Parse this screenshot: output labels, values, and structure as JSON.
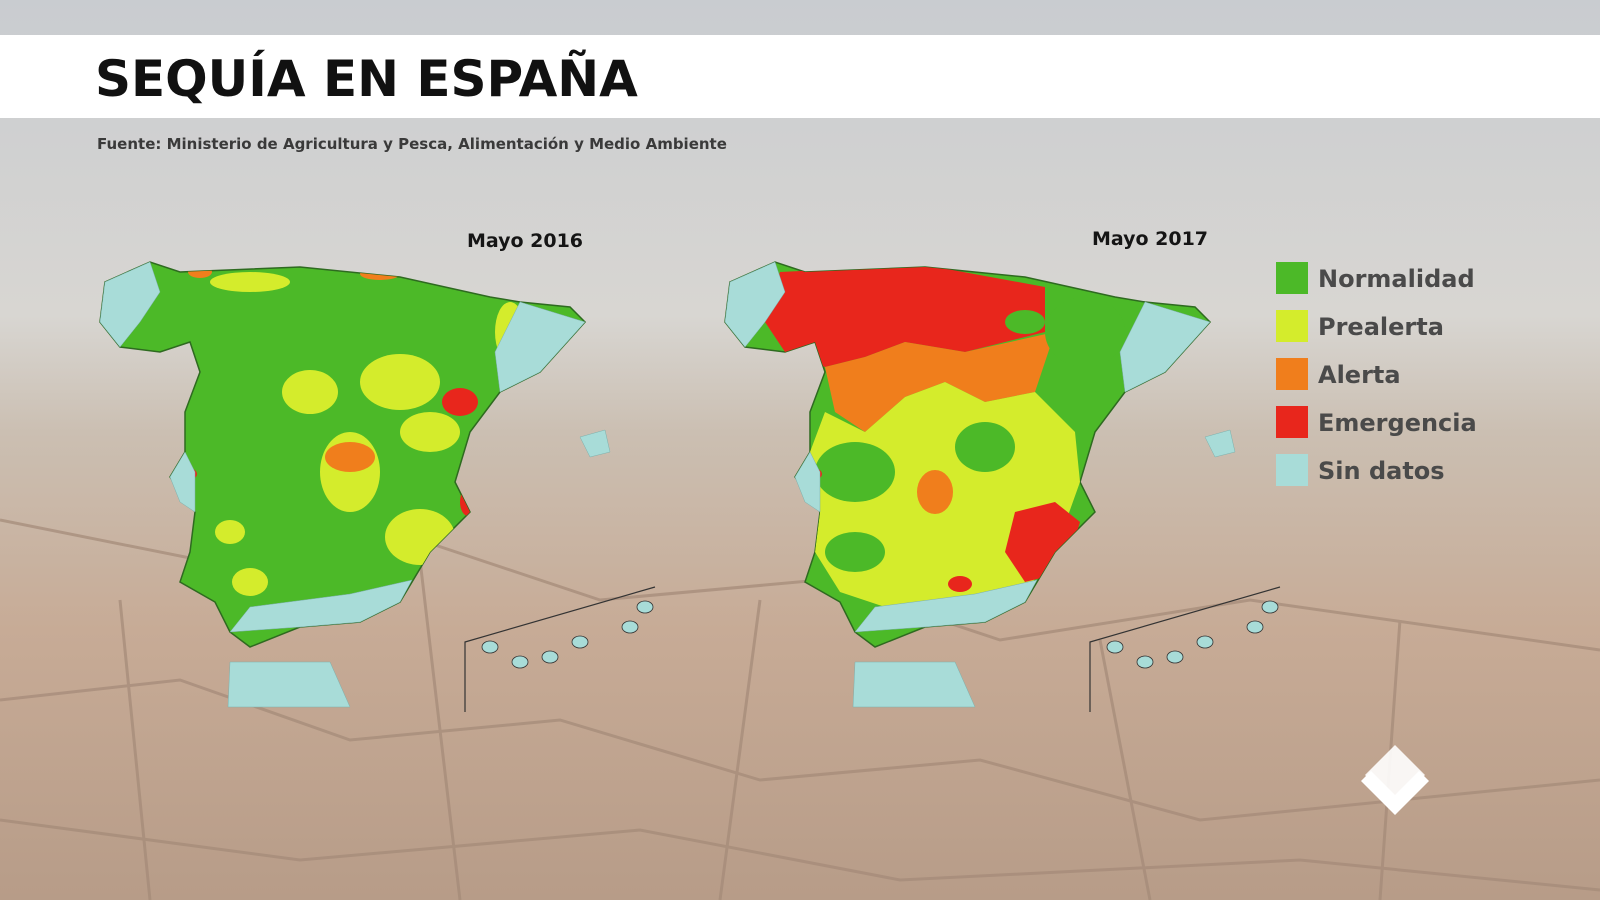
{
  "header": {
    "title": "SEQUÍA EN ESPAÑA",
    "source": "Fuente: Ministerio de Agricultura y Pesca, Alimentación y Medio Ambiente"
  },
  "maps": [
    {
      "label": "Mayo 2016"
    },
    {
      "label": "Mayo 2017"
    }
  ],
  "legend": {
    "items": [
      {
        "label": "Normalidad",
        "color": "#4cb928"
      },
      {
        "label": "Prealerta",
        "color": "#d4ec2c"
      },
      {
        "label": "Alerta",
        "color": "#f07e1c"
      },
      {
        "label": "Emergencia",
        "color": "#e8261c"
      },
      {
        "label": "Sin datos",
        "color": "#a8dcd8"
      }
    ]
  }
}
